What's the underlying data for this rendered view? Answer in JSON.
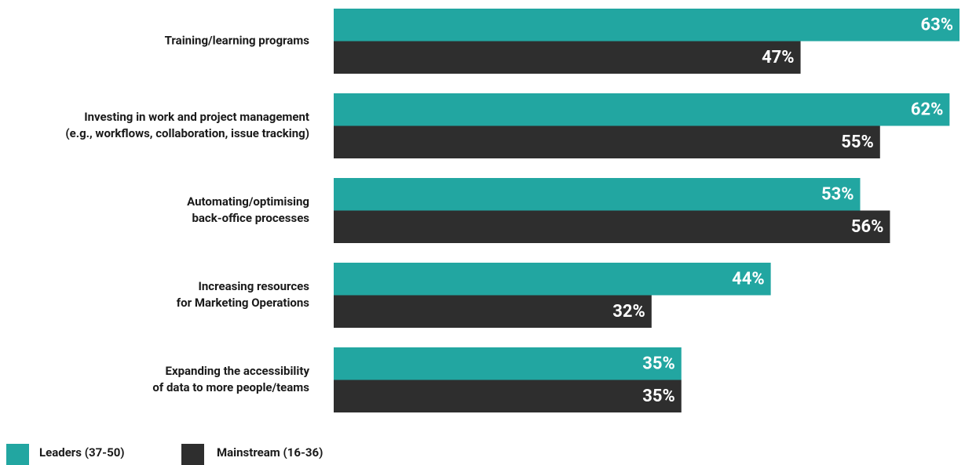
{
  "chart_data": {
    "type": "bar",
    "orientation": "horizontal",
    "categories": [
      [
        "Training/learning programs"
      ],
      [
        "Investing in work and project management",
        "(e.g., workflows, collaboration, issue tracking)"
      ],
      [
        "Automating/optimising",
        "back-office processes"
      ],
      [
        "Increasing resources",
        "for Marketing Operations"
      ],
      [
        "Expanding the accessibility",
        "of data to more people/teams"
      ]
    ],
    "series": [
      {
        "name": "Leaders (37-50)",
        "color": "#22a6a1",
        "values": [
          63,
          62,
          53,
          44,
          35
        ],
        "value_labels": [
          "63%",
          "62%",
          "53%",
          "44%",
          "35%"
        ]
      },
      {
        "name": "Mainstream (16-36)",
        "color": "#2e2e2e",
        "values": [
          47,
          55,
          56,
          32,
          35
        ],
        "value_labels": [
          "47%",
          "55%",
          "56%",
          "32%",
          "35%"
        ]
      }
    ],
    "legend": "bottom-left"
  }
}
